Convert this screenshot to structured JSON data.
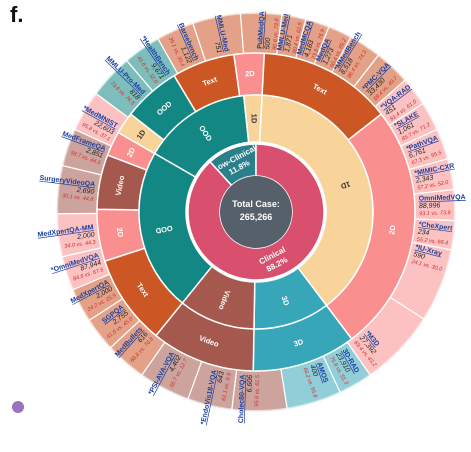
{
  "panel_label": "f.",
  "colors": {
    "center": "#55606a",
    "clinical": "#d9506f",
    "low_clinical": "#2b7f8a",
    "oneD": "#f8d49a",
    "twoD": "#fa8f8f",
    "threeD": "#37a6b8",
    "video": "#a4584e",
    "text": "#cc5624",
    "ood": "#128783",
    "link": "#1a3fa0",
    "stat": "#cf2b2b",
    "count": "#222222"
  },
  "chart_data": {
    "type": "sunburst",
    "center": {
      "label": "Total Case:",
      "value": "265,266"
    },
    "ring1": [
      {
        "label": "Low-Clinical",
        "pct": "11.8%",
        "share": 0.118,
        "color": "#2b7f8a"
      },
      {
        "label": "Clinical",
        "pct": "88.2%",
        "share": 0.882,
        "color": "#d9506f"
      }
    ],
    "ring2": [
      {
        "label": "OOD",
        "color": "#128783",
        "start": -60,
        "end": -6
      },
      {
        "label": "1D",
        "color": "#f8d49a",
        "start": -6,
        "end": 3
      },
      {
        "label": "1D",
        "color": "#f8d49a",
        "start": 3,
        "end": 143
      },
      {
        "label": "3D",
        "color": "#37a6b8",
        "start": 143,
        "end": 181
      },
      {
        "label": "Video",
        "color": "#a4584e",
        "start": 181,
        "end": 219
      },
      {
        "label": "OOD",
        "color": "#128783",
        "start": 219,
        "end": 300
      }
    ],
    "ring3": [
      {
        "label": "Text",
        "color": "#cc5624",
        "start": -31,
        "end": -8
      },
      {
        "label": "2D",
        "color": "#fa8f8f",
        "start": -8,
        "end": 3
      },
      {
        "label": "Text",
        "color": "#cc5624",
        "start": 3,
        "end": 52
      },
      {
        "label": "2D",
        "color": "#fa8f8f",
        "start": 52,
        "end": 143
      },
      {
        "label": "3D",
        "color": "#37a6b8",
        "start": 143,
        "end": 181
      },
      {
        "label": "Video",
        "color": "#a4584e",
        "start": 181,
        "end": 219
      },
      {
        "label": "Text",
        "color": "#cc5624",
        "start": 219,
        "end": 252
      },
      {
        "label": "2D",
        "color": "#fa8f8f",
        "start": 252,
        "end": 271
      },
      {
        "label": "Video",
        "color": "#a4584e",
        "start": 271,
        "end": 291
      },
      {
        "label": "2D",
        "color": "#fa8f8f",
        "start": 291,
        "end": 300
      },
      {
        "label": "1D",
        "color": "#f8d49a",
        "start": 300,
        "end": 308
      },
      {
        "label": "OOD",
        "color": "#128783",
        "start": 308,
        "end": 329
      }
    ],
    "datasets": [
      {
        "name": "PubMedQA",
        "count": "500",
        "stat": "80.8 vs. 73.8",
        "angle": 4
      },
      {
        "name": "MMLU-Med",
        "count": "1,871",
        "stat": "80.4 vs. 62.8",
        "angle": 11
      },
      {
        "name": "MedMCQA",
        "count": "4,183",
        "stat": "73.8 vs. 76.9",
        "angle": 18
      },
      {
        "name": "MedQA",
        "count": "1,273",
        "stat": "90.4 vs. 89.2",
        "angle": 25
      },
      {
        "name": "MMedBench",
        "count": "8,518",
        "stat": "86.4 vs. 74.3",
        "angle": 32,
        "star": true
      },
      {
        "name": "PMC-VQA",
        "count": "33,430",
        "stat": "69.4 vs. 49.7",
        "angle": 44,
        "star": true
      },
      {
        "name": "VQA-RAD",
        "count": "451",
        "stat": "81.4 vs. 61.0",
        "angle": 53,
        "star": true
      },
      {
        "name": "SLAKE",
        "count": "1,061",
        "stat": "85.7 vs. 71.2",
        "angle": 61,
        "star": true
      },
      {
        "name": "PathVQA",
        "count": "6,761",
        "stat": "67.3 vs. 55.5",
        "angle": 70,
        "star": true
      },
      {
        "name": "MIMIC-CXR",
        "count": "2,343",
        "stat": "57.2 vs. 52.0",
        "angle": 79,
        "star": true
      },
      {
        "name": "OmniMedVQA",
        "count": "88,996",
        "stat": "93.1 vs. 73.8",
        "angle": 88
      },
      {
        "name": "CheXpert",
        "count": "234",
        "stat": "55.2 vs. 66.4",
        "angle": 97,
        "star": true
      },
      {
        "name": "IU-Xray",
        "count": "590",
        "stat": "24.1 vs. 30.0",
        "angle": 105,
        "star": true
      },
      {
        "name": "M3D",
        "count": "27,392",
        "stat": "69.4 vs. 43.2",
        "angle": 140,
        "star": true
      },
      {
        "name": "3D-RAD",
        "count": "23,910",
        "stat": "75.6 vs. 51.3",
        "angle": 150
      },
      {
        "name": "AMOS",
        "count": "400",
        "stat": "66.2 vs. 55.8",
        "angle": 160
      },
      {
        "name": "Cholec80-VQA",
        "count": "6,606",
        "stat": "95.9 vs. 61.5",
        "angle": 182
      },
      {
        "name": "EndoVis18-VQA",
        "count": "643",
        "stat": "61.1 vs. 8.9",
        "angle": 192,
        "star": true
      },
      {
        "name": "PSI-AVA-VQA",
        "count": "4,402",
        "stat": "56.7 vs. 12.7",
        "angle": 208,
        "star": true
      },
      {
        "name": "MedBullets",
        "count": "616",
        "stat": "68.8 vs. 76.8",
        "angle": 222
      },
      {
        "name": "SGPQA",
        "count": "2,755",
        "stat": "41.8 vs. 45.0",
        "angle": 232
      },
      {
        "name": "MedXpertQA",
        "count": "2,000",
        "stat": "24.2 vs. 25.9",
        "angle": 242
      },
      {
        "name": "OmniMedVQA",
        "count": "87,944",
        "stat": "84.6 vs. 67.5",
        "angle": 252,
        "star": true
      },
      {
        "name": "MedXpertQA-MM",
        "count": "2,000",
        "stat": "34.0 vs. 44.3",
        "angle": 262
      },
      {
        "name": "SurgeryVideoQA",
        "count": "2,690",
        "stat": "30.1 vs. 44.8",
        "angle": 277
      },
      {
        "name": "MedFrameQA",
        "count": "2,851",
        "stat": "58.7 vs. 44.5",
        "angle": 290
      },
      {
        "name": "MedMNIST",
        "count": "22,603",
        "stat": "95.8 vs. 37.1",
        "angle": 299,
        "star": true
      },
      {
        "name": "MMLU-Pro-Med",
        "count": "818",
        "stat": "73.6 vs. 76.5",
        "angle": 314
      },
      {
        "name": "HealthBench",
        "count": "9,671",
        "stat": "41.6 vs. 32.0",
        "angle": 325,
        "star": true
      },
      {
        "name": "Bareebench",
        "count": "1,122",
        "stat": "39.1 vs. 30.4",
        "angle": 336
      },
      {
        "name": "MMLU-Med",
        "count": "751",
        "stat": "",
        "angle": 347
      }
    ]
  }
}
